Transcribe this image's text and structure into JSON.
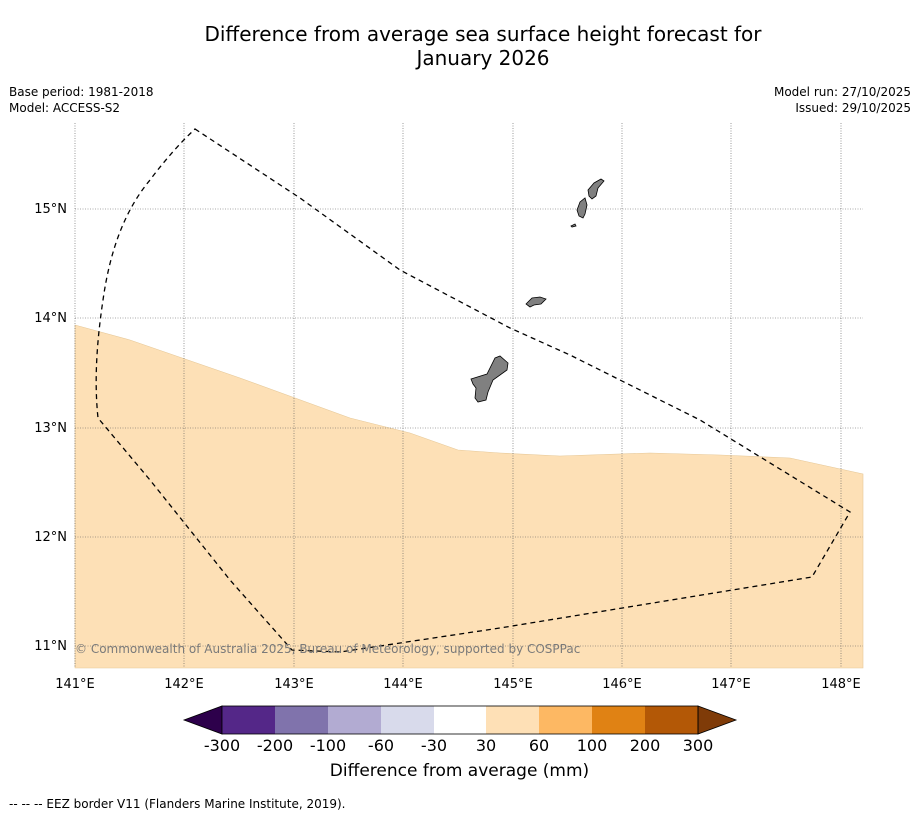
{
  "title_line1": "Difference from average sea surface height forecast for",
  "title_line2": "January 2026",
  "base_period": "Base period: 1981-2018",
  "model": "Model: ACCESS-S2",
  "model_run": "Model run: 27/10/2025",
  "issued": "Issued: 29/10/2025",
  "copyright": "© Commonwealth of Australia 2025, Bureau of Meteorology, supported by COSPPac",
  "map": {
    "lon_labels": [
      "141°E",
      "142°E",
      "143°E",
      "144°E",
      "145°E",
      "146°E",
      "147°E",
      "148°E"
    ],
    "lat_labels": [
      "15°N",
      "14°N",
      "13°N",
      "12°N",
      "11°N"
    ],
    "anomaly_region": "30 to 60 mm band south of ~12.8°N",
    "islands": [
      "Guam",
      "Rota",
      "Tinian",
      "Saipan"
    ]
  },
  "colorbar": {
    "tick_labels": [
      "-300",
      "-200",
      "-100",
      "-60",
      "-30",
      "30",
      "60",
      "100",
      "200",
      "300"
    ],
    "colors": [
      "#2d004b",
      "#542788",
      "#8073ac",
      "#b2abd2",
      "#d8daeb",
      "#ffffff",
      "#fee0b6",
      "#fdb863",
      "#e08214",
      "#b35806",
      "#7f3b08"
    ],
    "label": "Difference from average (mm)"
  },
  "footnote": "--  --  -- EEZ border V11 (Flanders Marine Institute, 2019)."
}
